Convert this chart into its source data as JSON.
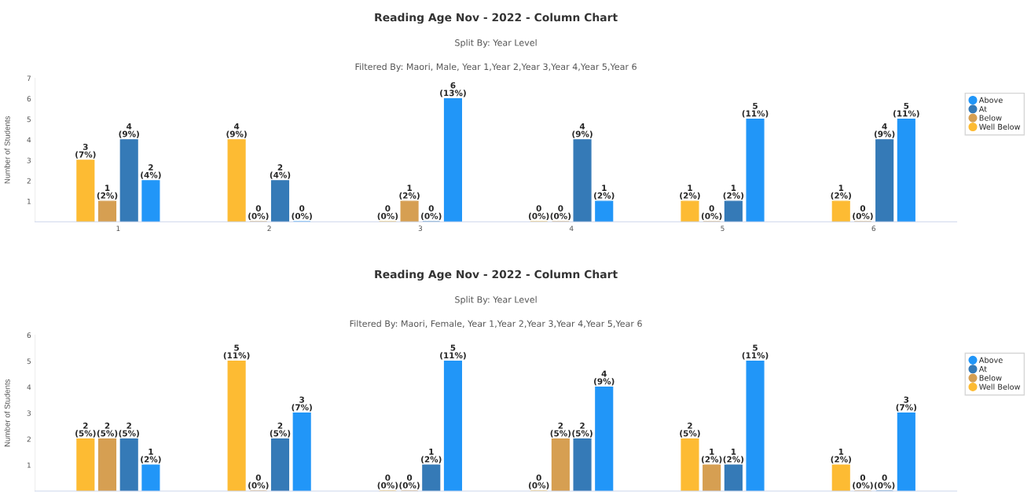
{
  "chart_data": [
    {
      "type": "bar",
      "title": "Reading Age Nov - 2022 - Column Chart",
      "subtitle": "Split By: Year Level",
      "annotations": [
        "Filtered By: Maori, Male, Year 1,Year 2,Year 3,Year 4,Year 5,Year 6"
      ],
      "ylabel": "Number of Students",
      "categories": [
        "1",
        "2",
        "3",
        "4",
        "5",
        "6"
      ],
      "ylim": [
        0,
        7
      ],
      "yticks": [
        1,
        2,
        3,
        4,
        5,
        6,
        7
      ],
      "legend": "right",
      "grid": false,
      "series": [
        {
          "name": "Well Below",
          "color": "#fdbb33",
          "values": [
            3,
            4,
            0,
            0,
            1,
            1
          ],
          "value_labels": [
            "3\n(7%)",
            "4\n(9%)",
            "0\n(0%)",
            "0\n(0%)",
            "1\n(2%)",
            "1\n(2%)"
          ]
        },
        {
          "name": "Below",
          "color": "#d69f52",
          "values": [
            1,
            0,
            1,
            0,
            0,
            0
          ],
          "value_labels": [
            "1\n(2%)",
            "0\n(0%)",
            "1\n(2%)",
            "0\n(0%)",
            "0\n(0%)",
            "0\n(0%)"
          ]
        },
        {
          "name": "At",
          "color": "#357ab7",
          "values": [
            4,
            2,
            0,
            4,
            1,
            4
          ],
          "value_labels": [
            "4\n(9%)",
            "2\n(4%)",
            "0\n(0%)",
            "4\n(9%)",
            "1\n(2%)",
            "4\n(9%)"
          ]
        },
        {
          "name": "Above",
          "color": "#2196f8",
          "values": [
            2,
            0,
            6,
            1,
            5,
            5
          ],
          "value_labels": [
            "2\n(4%)",
            "0\n(0%)",
            "6\n(13%)",
            "1\n(2%)",
            "5\n(11%)",
            "5\n(11%)"
          ]
        }
      ]
    },
    {
      "type": "bar",
      "title": "Reading Age Nov - 2022 - Column Chart",
      "subtitle": "Split By: Year Level",
      "annotations": [
        "Filtered By: Maori, Female, Year 1,Year 2,Year 3,Year 4,Year 5,Year 6"
      ],
      "ylabel": "Number of Students",
      "categories": [
        null,
        null,
        null,
        null,
        null,
        null
      ],
      "ylim": [
        0,
        6
      ],
      "yticks": [
        1,
        2,
        3,
        4,
        5,
        6
      ],
      "legend": "right",
      "grid": false,
      "tick_labels": "y",
      "series": [
        {
          "name": "Well Below",
          "color": "#fdbb33",
          "values": [
            2,
            5,
            0,
            0,
            2,
            1
          ],
          "value_labels": [
            "2\n(5%)",
            "5\n(11%)",
            "0\n(0%)",
            "0\n(0%)",
            "2\n(5%)",
            "1\n(2%)"
          ]
        },
        {
          "name": "Below",
          "color": "#d69f52",
          "values": [
            2,
            0,
            0,
            2,
            1,
            0
          ],
          "value_labels": [
            "2\n(5%)",
            "0\n(0%)",
            "0\n(0%)",
            "2\n(5%)",
            "1\n(2%)",
            "0\n(0%)"
          ]
        },
        {
          "name": "At",
          "color": "#357ab7",
          "values": [
            2,
            2,
            1,
            2,
            1,
            0
          ],
          "value_labels": [
            "2\n(5%)",
            "2\n(5%)",
            "1\n(2%)",
            "2\n(5%)",
            "1\n(2%)",
            "0\n(0%)"
          ]
        },
        {
          "name": "Above",
          "color": "#2196f8",
          "values": [
            1,
            3,
            5,
            4,
            5,
            3
          ],
          "value_labels": [
            "1\n(2%)",
            "3\n(7%)",
            "5\n(11%)",
            "4\n(9%)",
            "5\n(11%)",
            "3\n(7%)"
          ]
        }
      ]
    }
  ]
}
